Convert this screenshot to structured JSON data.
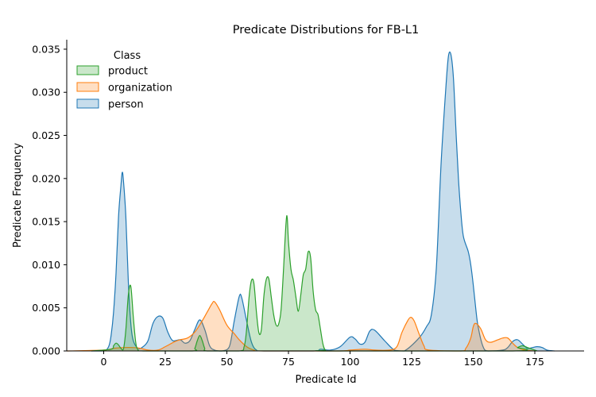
{
  "chart_data": {
    "type": "area",
    "title": "Predicate Distributions for FB-L1",
    "xlabel": "Predicate Id",
    "ylabel": "Predicate Frequency",
    "xlim": [
      -15,
      195
    ],
    "ylim": [
      0,
      0.0361
    ],
    "xticks": [
      0,
      25,
      50,
      75,
      100,
      125,
      150,
      175
    ],
    "yticks": [
      0,
      0.005,
      0.01,
      0.015,
      0.02,
      0.025,
      0.03,
      0.035
    ],
    "ytick_labels": [
      "0.000",
      "0.005",
      "0.010",
      "0.015",
      "0.020",
      "0.025",
      "0.030",
      "0.035"
    ],
    "grid": false,
    "legend": {
      "title": "Class",
      "position": "top-left"
    },
    "series": [
      {
        "name": "person",
        "color": "#1f77b4",
        "points": [
          [
            -5,
            0
          ],
          [
            0,
            0
          ],
          [
            2,
            0.0005
          ],
          [
            3,
            0.0018
          ],
          [
            4,
            0.0045
          ],
          [
            5,
            0.009
          ],
          [
            6,
            0.0155
          ],
          [
            7,
            0.0192
          ],
          [
            7.5,
            0.0207
          ],
          [
            8,
            0.0198
          ],
          [
            9,
            0.0155
          ],
          [
            10,
            0.008
          ],
          [
            11,
            0.0032
          ],
          [
            12,
            0.0012
          ],
          [
            14,
            0.0003
          ],
          [
            16,
            0.0005
          ],
          [
            18,
            0.0012
          ],
          [
            20,
            0.0032
          ],
          [
            22,
            0.004
          ],
          [
            24,
            0.0038
          ],
          [
            26,
            0.0022
          ],
          [
            28,
            0.0012
          ],
          [
            31,
            0.0013
          ],
          [
            33,
            0.0009
          ],
          [
            35,
            0.0012
          ],
          [
            37,
            0.0025
          ],
          [
            39,
            0.0036
          ],
          [
            41,
            0.0025
          ],
          [
            43,
            0.0006
          ],
          [
            45,
            0.0001
          ],
          [
            48,
            0
          ],
          [
            51,
            0.0005
          ],
          [
            53,
            0.0035
          ],
          [
            55,
            0.0063
          ],
          [
            56,
            0.0062
          ],
          [
            58,
            0.0035
          ],
          [
            60,
            0.001
          ],
          [
            62,
            0.0001
          ],
          [
            65,
            0
          ],
          [
            85,
            0
          ],
          [
            88,
            0.0002
          ],
          [
            92,
            0.0001
          ],
          [
            96,
            0.0005
          ],
          [
            100,
            0.0016
          ],
          [
            102,
            0.0014
          ],
          [
            104,
            0.0008
          ],
          [
            106,
            0.001
          ],
          [
            108,
            0.0023
          ],
          [
            110,
            0.0024
          ],
          [
            114,
            0.0012
          ],
          [
            118,
            0.0001
          ],
          [
            122,
            0
          ],
          [
            128,
            0.0015
          ],
          [
            131,
            0.0028
          ],
          [
            133,
            0.0042
          ],
          [
            135,
            0.0095
          ],
          [
            137,
            0.022
          ],
          [
            139,
            0.031
          ],
          [
            140,
            0.0343
          ],
          [
            141,
            0.0343
          ],
          [
            142,
            0.0315
          ],
          [
            143,
            0.0255
          ],
          [
            144,
            0.02
          ],
          [
            145,
            0.016
          ],
          [
            146,
            0.0133
          ],
          [
            148,
            0.0115
          ],
          [
            149,
            0.01
          ],
          [
            150,
            0.0077
          ],
          [
            151,
            0.005
          ],
          [
            152,
            0.0028
          ],
          [
            154,
            0.0005
          ],
          [
            156,
            0
          ],
          [
            162,
            0.0001
          ],
          [
            164,
            0.0004
          ],
          [
            166,
            0.0011
          ],
          [
            168,
            0.0013
          ],
          [
            170,
            0.0008
          ],
          [
            172,
            0.0003
          ],
          [
            174,
            0.0004
          ],
          [
            176,
            0.0005
          ],
          [
            178,
            0.0004
          ],
          [
            180,
            0.0001
          ],
          [
            183,
            0
          ]
        ]
      },
      {
        "name": "organization",
        "color": "#ff7f0e",
        "points": [
          [
            -15,
            0
          ],
          [
            0,
            0.0001
          ],
          [
            4,
            0.0003
          ],
          [
            8,
            0.0004
          ],
          [
            12,
            0.0004
          ],
          [
            15,
            0.0003
          ],
          [
            18,
            0.0001
          ],
          [
            22,
            0.0001
          ],
          [
            25,
            0.0005
          ],
          [
            29,
            0.0011
          ],
          [
            31,
            0.0013
          ],
          [
            34,
            0.0015
          ],
          [
            37,
            0.0022
          ],
          [
            40,
            0.0035
          ],
          [
            42,
            0.0045
          ],
          [
            44,
            0.0055
          ],
          [
            45,
            0.0057
          ],
          [
            47,
            0.0048
          ],
          [
            50,
            0.003
          ],
          [
            53,
            0.002
          ],
          [
            55,
            0.0013
          ],
          [
            58,
            0.0005
          ],
          [
            61,
            0.0001
          ],
          [
            65,
            0
          ],
          [
            95,
            0
          ],
          [
            100,
            0.0001
          ],
          [
            106,
            0.0002
          ],
          [
            110,
            0.0001
          ],
          [
            116,
            0.0001
          ],
          [
            119,
            0.0005
          ],
          [
            121,
            0.0021
          ],
          [
            123,
            0.0033
          ],
          [
            124.5,
            0.0039
          ],
          [
            126,
            0.0035
          ],
          [
            128,
            0.002
          ],
          [
            130,
            0.0006
          ],
          [
            132,
            0.0001
          ],
          [
            145,
            0
          ],
          [
            147,
            0.0003
          ],
          [
            149,
            0.0015
          ],
          [
            150,
            0.0028
          ],
          [
            151,
            0.0032
          ],
          [
            153,
            0.0026
          ],
          [
            155,
            0.0013
          ],
          [
            157,
            0.001
          ],
          [
            160,
            0.0013
          ],
          [
            162,
            0.0015
          ],
          [
            164,
            0.0015
          ],
          [
            166,
            0.0009
          ],
          [
            168,
            0.0004
          ],
          [
            171,
            0.0001
          ],
          [
            175,
            0
          ]
        ]
      },
      {
        "name": "product",
        "color": "#2ca02c",
        "points": [
          [
            -5,
            0
          ],
          [
            3,
            0.0002
          ],
          [
            4,
            0.0006
          ],
          [
            5,
            0.0009
          ],
          [
            6,
            0.0007
          ],
          [
            7,
            0.0003
          ],
          [
            8,
            0.0002
          ],
          [
            9,
            0.0025
          ],
          [
            10,
            0.0065
          ],
          [
            11,
            0.0075
          ],
          [
            12,
            0.004
          ],
          [
            13,
            0.001
          ],
          [
            14,
            0.0001
          ],
          [
            16,
            0
          ],
          [
            36,
            0
          ],
          [
            37,
            0.0003
          ],
          [
            38,
            0.0012
          ],
          [
            39,
            0.0018
          ],
          [
            40,
            0.0012
          ],
          [
            41,
            0.0003
          ],
          [
            42,
            0
          ],
          [
            55,
            0
          ],
          [
            57,
            0.0005
          ],
          [
            58,
            0.0025
          ],
          [
            59,
            0.0062
          ],
          [
            60,
            0.0082
          ],
          [
            61,
            0.0078
          ],
          [
            62,
            0.0045
          ],
          [
            63,
            0.0021
          ],
          [
            64,
            0.0025
          ],
          [
            65,
            0.0063
          ],
          [
            66,
            0.0083
          ],
          [
            67,
            0.0084
          ],
          [
            68,
            0.0063
          ],
          [
            69,
            0.0042
          ],
          [
            70,
            0.003
          ],
          [
            71,
            0.0031
          ],
          [
            72,
            0.0048
          ],
          [
            73,
            0.0095
          ],
          [
            74,
            0.0148
          ],
          [
            74.5,
            0.0155
          ],
          [
            75,
            0.0127
          ],
          [
            76,
            0.0095
          ],
          [
            77,
            0.0082
          ],
          [
            78,
            0.0063
          ],
          [
            79,
            0.0046
          ],
          [
            80,
            0.0065
          ],
          [
            81,
            0.0088
          ],
          [
            82,
            0.0095
          ],
          [
            83,
            0.0115
          ],
          [
            84,
            0.0108
          ],
          [
            85,
            0.007
          ],
          [
            86,
            0.0048
          ],
          [
            87,
            0.0042
          ],
          [
            88,
            0.0025
          ],
          [
            89,
            0.0008
          ],
          [
            90,
            0.0001
          ],
          [
            92,
            0
          ],
          [
            166,
            0
          ],
          [
            168,
            0.0004
          ],
          [
            170,
            0.0006
          ],
          [
            172,
            0.0004
          ],
          [
            174,
            0.0002
          ],
          [
            176,
            0
          ]
        ]
      }
    ]
  }
}
